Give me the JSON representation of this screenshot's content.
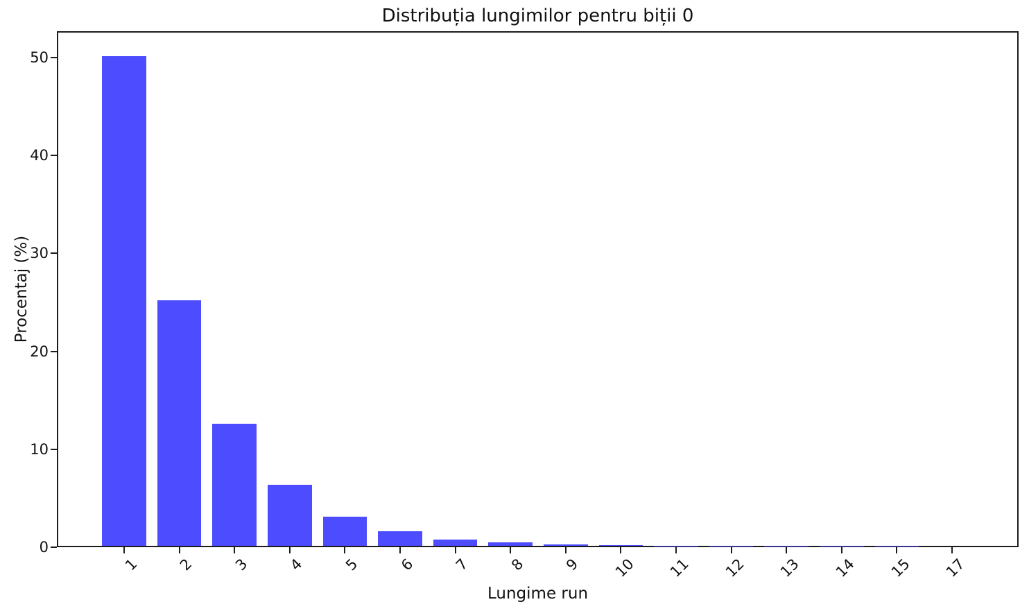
{
  "chart_data": {
    "type": "bar",
    "title": "Distribuția lungimilor pentru biții 0",
    "xlabel": "Lungime run",
    "ylabel": "Procentaj (%)",
    "categories": [
      "1",
      "2",
      "3",
      "4",
      "5",
      "6",
      "7",
      "8",
      "9",
      "10",
      "11",
      "12",
      "13",
      "14",
      "15",
      "17"
    ],
    "values": [
      50.0,
      25.1,
      12.5,
      6.2,
      3.0,
      1.5,
      0.65,
      0.32,
      0.16,
      0.07,
      0.03,
      0.02,
      0.015,
      0.01,
      0.008,
      0.004
    ],
    "yticks": [
      0,
      10,
      20,
      30,
      40,
      50
    ],
    "ylim": [
      0,
      52.7
    ],
    "bar_color": "#4d4dff",
    "axis_color": "#1c1c1c",
    "grid": false,
    "legend": null,
    "xtick_rotation_deg": 45
  }
}
